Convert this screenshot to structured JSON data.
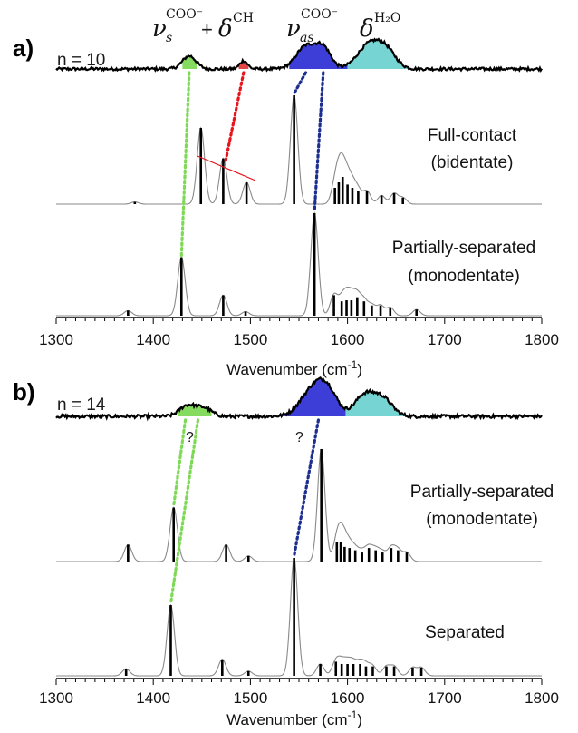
{
  "panels": [
    {
      "letter": "a)",
      "n_label": "n = 10",
      "assignments": {
        "sym_nu": "ν",
        "sym_nu_sub": "s",
        "sym_sup": "COO⁻",
        "plus": "+",
        "delta": "δ",
        "delta_sup": "CH",
        "asym_nu": "ν",
        "asym_sub": "as",
        "asym_sup": "COO⁻",
        "water_delta": "δ",
        "water_sup": "H₂O"
      },
      "traces": [
        {
          "label_line1": "Full-contact",
          "label_line2": "(bidentate)"
        },
        {
          "label_line1": "Partially-separated",
          "label_line2": "(monodentate)"
        }
      ],
      "question_marks": [],
      "xlabel": "Wavenumber (cm",
      "xlabel_sup": "-1",
      "xlabel_close": ")"
    },
    {
      "letter": "b)",
      "n_label": "n = 14",
      "traces": [
        {
          "label_line1": "Partially-separated",
          "label_line2": "(monodentate)"
        },
        {
          "label_line1": "Separated",
          "label_line2": ""
        }
      ],
      "question_marks": [
        "?",
        "?"
      ],
      "xlabel": "Wavenumber (cm",
      "xlabel_sup": "-1",
      "xlabel_close": ")"
    }
  ],
  "chart_data": [
    {
      "type": "line",
      "panel": "a",
      "xlim": [
        1300,
        1800
      ],
      "xticks": [
        1300,
        1400,
        1500,
        1600,
        1700,
        1800
      ],
      "xlabel": "Wavenumber (cm-1)",
      "experiment": {
        "name": "n = 10",
        "peaks": [
          [
            1437,
            0.55,
            7
          ],
          [
            1493,
            0.35,
            4
          ],
          [
            1557,
            0.95,
            10
          ],
          [
            1575,
            0.85,
            8
          ],
          [
            1622,
            1.0,
            12
          ],
          [
            1640,
            0.7,
            10
          ]
        ],
        "shaded_bands": [
          {
            "from": 1430,
            "to": 1445,
            "color": "#7ed957"
          },
          {
            "from": 1488,
            "to": 1498,
            "color": "#e23a3a"
          },
          {
            "from": 1540,
            "to": 1600,
            "color": "#3333d6"
          },
          {
            "from": 1600,
            "to": 1665,
            "color": "#6fd3d0"
          }
        ]
      },
      "computed": [
        {
          "name": "Full-contact (bidentate)",
          "sticks": [
            [
              1381,
              0.02
            ],
            [
              1449,
              0.7
            ],
            [
              1472,
              0.42
            ],
            [
              1496,
              0.2
            ],
            [
              1545,
              1.0
            ],
            [
              1587,
              0.15
            ],
            [
              1591,
              0.2
            ],
            [
              1595,
              0.25
            ],
            [
              1600,
              0.18
            ],
            [
              1605,
              0.15
            ],
            [
              1611,
              0.12
            ],
            [
              1620,
              0.12
            ],
            [
              1635,
              0.08
            ],
            [
              1648,
              0.1
            ],
            [
              1657,
              0.06
            ]
          ],
          "fwhm": 9
        },
        {
          "name": "Partially-separated (monodentate)",
          "sticks": [
            [
              1374,
              0.05
            ],
            [
              1429,
              0.57
            ],
            [
              1472,
              0.2
            ],
            [
              1495,
              0.04
            ],
            [
              1566,
              1.0
            ],
            [
              1586,
              0.2
            ],
            [
              1594,
              0.14
            ],
            [
              1599,
              0.15
            ],
            [
              1604,
              0.15
            ],
            [
              1610,
              0.18
            ],
            [
              1617,
              0.14
            ],
            [
              1625,
              0.1
            ],
            [
              1634,
              0.1
            ],
            [
              1644,
              0.08
            ],
            [
              1671,
              0.06
            ]
          ],
          "fwhm": 9
        }
      ],
      "correlation_lines": [
        {
          "color": "#7ed957",
          "from_x": 1437,
          "to_x": 1429,
          "target": 1
        },
        {
          "color": "#e8141c",
          "from_x": 1493,
          "to_x": 1474,
          "target": 0
        },
        {
          "color": "#1c2e8f",
          "from_x": 1557,
          "to_x": 1545,
          "target": 0
        },
        {
          "color": "#1c2e8f",
          "from_x": 1575,
          "to_x": 1566,
          "target": 1
        }
      ]
    },
    {
      "type": "line",
      "panel": "b",
      "xlim": [
        1300,
        1800
      ],
      "xticks": [
        1300,
        1400,
        1500,
        1600,
        1700,
        1800
      ],
      "xlabel": "Wavenumber (cm-1)",
      "experiment": {
        "name": "n = 14",
        "peaks": [
          [
            1435,
            0.4,
            8
          ],
          [
            1452,
            0.3,
            8
          ],
          [
            1565,
            1.0,
            13
          ],
          [
            1580,
            0.7,
            10
          ],
          [
            1617,
            0.75,
            10
          ],
          [
            1636,
            0.65,
            10
          ]
        ],
        "shaded_bands": [
          {
            "from": 1425,
            "to": 1460,
            "color": "#7ed957"
          },
          {
            "from": 1510,
            "to": 1598,
            "color": "#3333d6"
          },
          {
            "from": 1598,
            "to": 1665,
            "color": "#6fd3d0"
          }
        ]
      },
      "computed": [
        {
          "name": "Partially-separated (monodentate)",
          "sticks": [
            [
              1374,
              0.15
            ],
            [
              1421,
              0.48
            ],
            [
              1475,
              0.15
            ],
            [
              1498,
              0.05
            ],
            [
              1573,
              1.0
            ],
            [
              1589,
              0.17
            ],
            [
              1593,
              0.17
            ],
            [
              1597,
              0.13
            ],
            [
              1602,
              0.12
            ],
            [
              1608,
              0.1
            ],
            [
              1615,
              0.08
            ],
            [
              1622,
              0.12
            ],
            [
              1629,
              0.1
            ],
            [
              1636,
              0.08
            ],
            [
              1645,
              0.12
            ],
            [
              1652,
              0.1
            ],
            [
              1661,
              0.08
            ]
          ],
          "fwhm": 9
        },
        {
          "name": "Separated",
          "sticks": [
            [
              1372,
              0.06
            ],
            [
              1418,
              0.6
            ],
            [
              1471,
              0.14
            ],
            [
              1498,
              0.04
            ],
            [
              1545,
              1.0
            ],
            [
              1572,
              0.1
            ],
            [
              1588,
              0.12
            ],
            [
              1594,
              0.1
            ],
            [
              1600,
              0.1
            ],
            [
              1606,
              0.1
            ],
            [
              1613,
              0.1
            ],
            [
              1619,
              0.08
            ],
            [
              1626,
              0.08
            ],
            [
              1640,
              0.08
            ],
            [
              1648,
              0.08
            ],
            [
              1667,
              0.07
            ],
            [
              1676,
              0.07
            ]
          ],
          "fwhm": 9
        }
      ],
      "correlation_lines": [
        {
          "color": "#7ed957",
          "from_x": 1433,
          "to_x": 1421,
          "target": 0
        },
        {
          "color": "#7ed957",
          "from_x": 1446,
          "to_x": 1418,
          "target": 1
        },
        {
          "color": "#1c2e8f",
          "from_x": 1570,
          "to_x": 1545,
          "target": 1
        }
      ]
    }
  ]
}
